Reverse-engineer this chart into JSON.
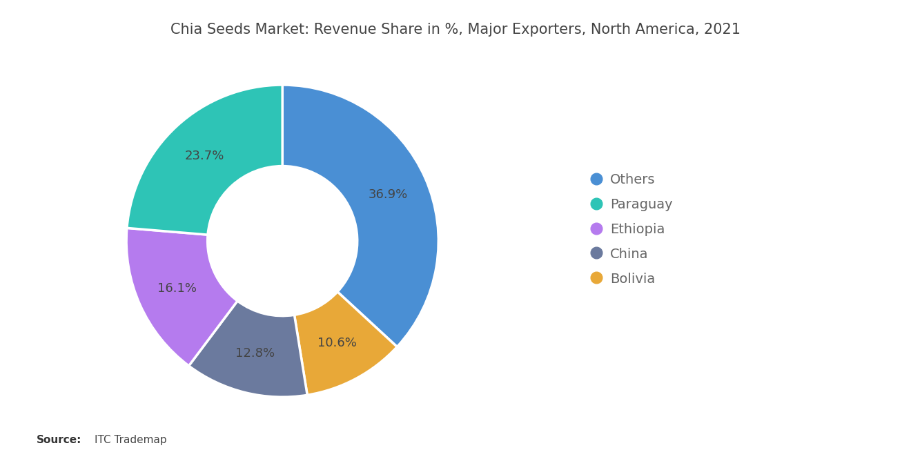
{
  "title": "Chia Seeds Market: Revenue Share in %, Major Exporters, North America, 2021",
  "labels": [
    "Others",
    "Paraguay",
    "Ethiopia",
    "China",
    "Bolivia"
  ],
  "values": [
    36.9,
    23.7,
    16.1,
    12.8,
    10.6
  ],
  "colors": [
    "#4a8fd4",
    "#2ec4b6",
    "#b57bee",
    "#6b7a9e",
    "#e8a838"
  ],
  "source_bold": "Source:",
  "source_text": "ITC Trademap",
  "background_color": "#ffffff",
  "title_fontsize": 15,
  "label_fontsize": 13,
  "legend_fontsize": 14
}
